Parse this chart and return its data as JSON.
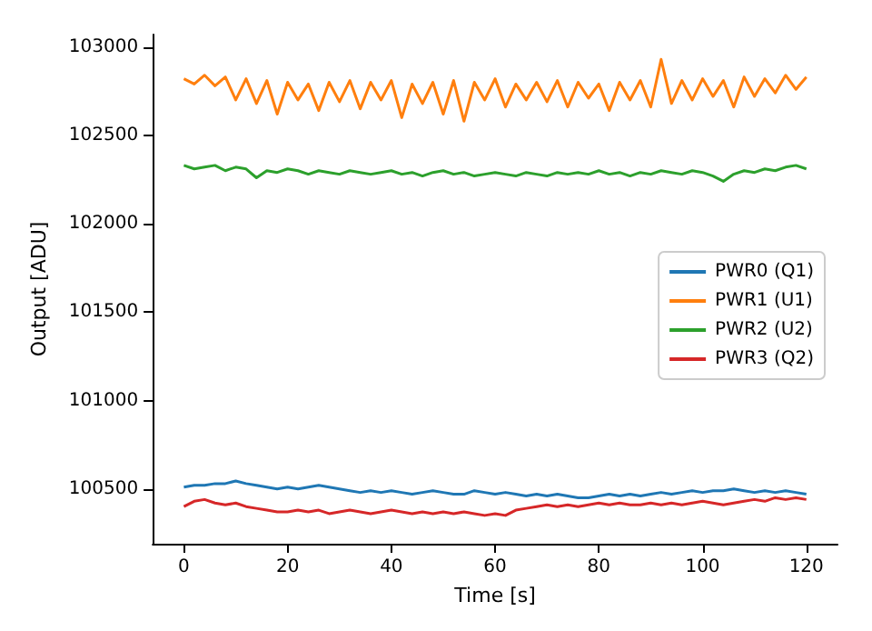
{
  "chart_data": {
    "type": "line",
    "xlabel": "Time [s]",
    "ylabel": "Output [ADU]",
    "x": [
      0,
      2,
      4,
      6,
      8,
      10,
      12,
      14,
      16,
      18,
      20,
      22,
      24,
      26,
      28,
      30,
      32,
      34,
      36,
      38,
      40,
      42,
      44,
      46,
      48,
      50,
      52,
      54,
      56,
      58,
      60,
      62,
      64,
      66,
      68,
      70,
      72,
      74,
      76,
      78,
      80,
      82,
      84,
      86,
      88,
      90,
      92,
      94,
      96,
      98,
      100,
      102,
      104,
      106,
      108,
      110,
      112,
      114,
      116,
      118,
      120
    ],
    "series": [
      {
        "name": "PWR0 (Q1)",
        "color": "#1f77b4",
        "values": [
          100510,
          100520,
          100520,
          100530,
          100530,
          100545,
          100530,
          100520,
          100510,
          100500,
          100510,
          100500,
          100510,
          100520,
          100510,
          100500,
          100490,
          100480,
          100490,
          100480,
          100490,
          100480,
          100470,
          100480,
          100490,
          100480,
          100470,
          100470,
          100490,
          100480,
          100470,
          100480,
          100470,
          100460,
          100470,
          100460,
          100470,
          100460,
          100450,
          100450,
          100460,
          100470,
          100460,
          100470,
          100460,
          100470,
          100480,
          100470,
          100480,
          100490,
          100480,
          100490,
          100490,
          100500,
          100490,
          100480,
          100490,
          100480,
          100490,
          100480,
          100470
        ]
      },
      {
        "name": "PWR1 (U1)",
        "color": "#ff7f0e",
        "values": [
          102820,
          102790,
          102840,
          102780,
          102830,
          102700,
          102820,
          102680,
          102810,
          102620,
          102800,
          102700,
          102790,
          102640,
          102800,
          102690,
          102810,
          102650,
          102800,
          102700,
          102810,
          102600,
          102790,
          102680,
          102800,
          102620,
          102810,
          102580,
          102800,
          102700,
          102820,
          102660,
          102790,
          102700,
          102800,
          102690,
          102810,
          102660,
          102800,
          102710,
          102790,
          102640,
          102800,
          102700,
          102810,
          102660,
          102930,
          102680,
          102810,
          102700,
          102820,
          102720,
          102810,
          102660,
          102830,
          102720,
          102820,
          102740,
          102840,
          102760,
          102830
        ]
      },
      {
        "name": "PWR2 (U2)",
        "color": "#2ca02c",
        "values": [
          102330,
          102310,
          102320,
          102330,
          102300,
          102320,
          102310,
          102260,
          102300,
          102290,
          102310,
          102300,
          102280,
          102300,
          102290,
          102280,
          102300,
          102290,
          102280,
          102290,
          102300,
          102280,
          102290,
          102270,
          102290,
          102300,
          102280,
          102290,
          102270,
          102280,
          102290,
          102280,
          102270,
          102290,
          102280,
          102270,
          102290,
          102280,
          102290,
          102280,
          102300,
          102280,
          102290,
          102270,
          102290,
          102280,
          102300,
          102290,
          102280,
          102300,
          102290,
          102270,
          102240,
          102280,
          102300,
          102290,
          102310,
          102300,
          102320,
          102330,
          102310
        ]
      },
      {
        "name": "PWR3 (Q2)",
        "color": "#d62728",
        "values": [
          100400,
          100430,
          100440,
          100420,
          100410,
          100420,
          100400,
          100390,
          100380,
          100370,
          100370,
          100380,
          100370,
          100380,
          100360,
          100370,
          100380,
          100370,
          100360,
          100370,
          100380,
          100370,
          100360,
          100370,
          100360,
          100370,
          100360,
          100370,
          100360,
          100350,
          100360,
          100350,
          100380,
          100390,
          100400,
          100410,
          100400,
          100410,
          100400,
          100410,
          100420,
          100410,
          100420,
          100410,
          100410,
          100420,
          100410,
          100420,
          100410,
          100420,
          100430,
          100420,
          100410,
          100420,
          100430,
          100440,
          100430,
          100450,
          100440,
          100450,
          100440
        ]
      }
    ],
    "xlim": [
      -6,
      126
    ],
    "xticks": [
      0,
      20,
      40,
      60,
      80,
      100,
      120
    ],
    "ylim": [
      100190,
      103070
    ],
    "yticks": [
      100500,
      101000,
      101500,
      102000,
      102500,
      103000
    ],
    "legend": "right",
    "grid": false
  }
}
